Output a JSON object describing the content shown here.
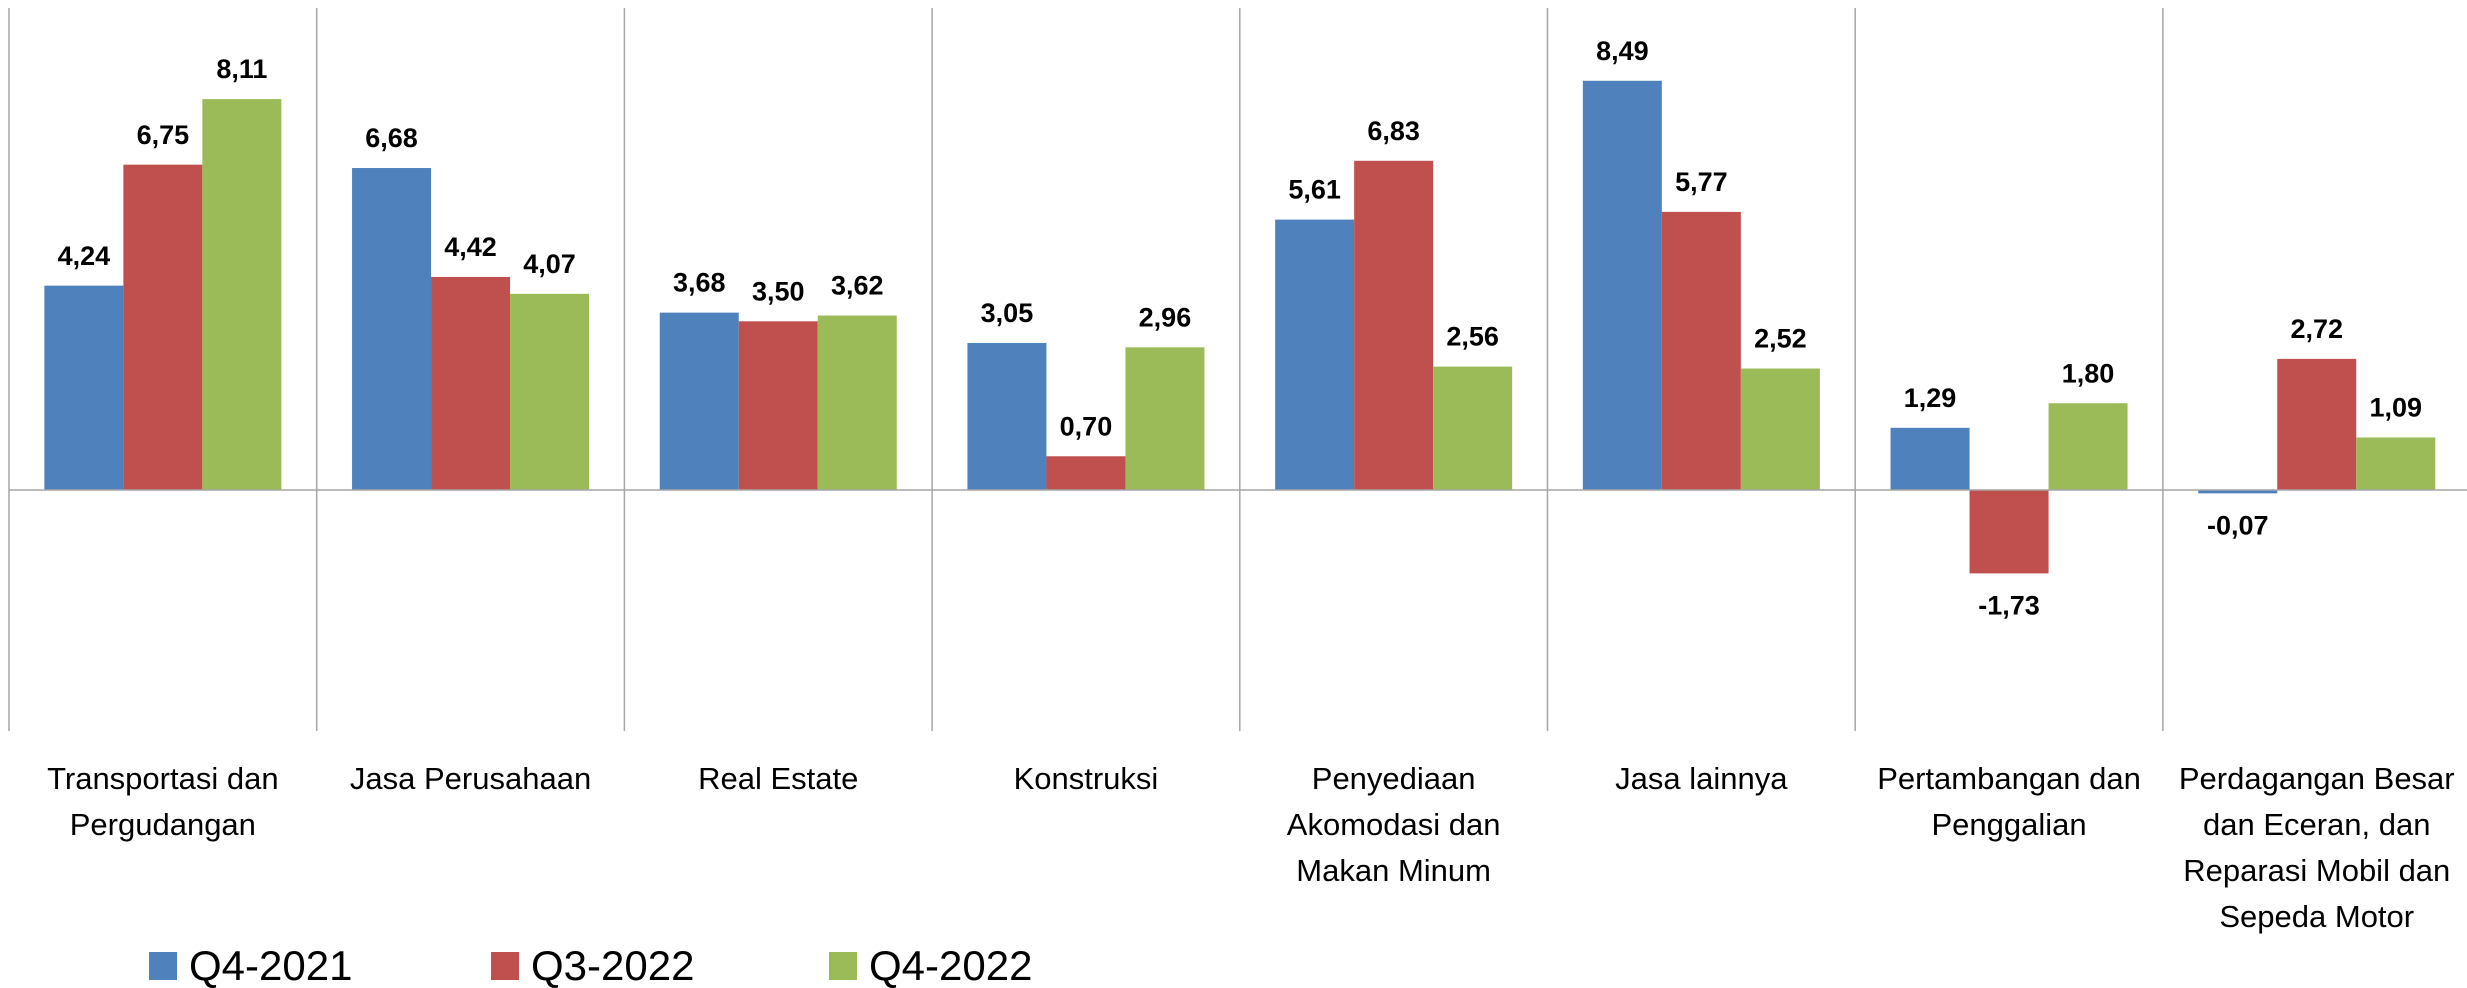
{
  "chart_data": {
    "type": "bar",
    "categories": [
      "Transportasi dan Pergudangan",
      "Jasa Perusahaan",
      "Real Estate",
      "Konstruksi",
      "Penyediaan Akomodasi dan Makan Minum",
      "Jasa lainnya",
      "Pertambangan dan Penggalian",
      "Perdagangan Besar dan Eceran, dan Reparasi Mobil dan Sepeda Motor"
    ],
    "series": [
      {
        "name": "Q4-2021",
        "color": "#4f81bd",
        "values": [
          4.24,
          6.68,
          3.68,
          3.05,
          5.61,
          8.49,
          1.29,
          -0.07
        ],
        "value_labels": [
          "4,24",
          "6,68",
          "3,68",
          "3,05",
          "5,61",
          "8,49",
          "1,29",
          "-0,07"
        ]
      },
      {
        "name": "Q3-2022",
        "color": "#c0504d",
        "values": [
          6.75,
          4.42,
          3.5,
          0.7,
          6.83,
          5.77,
          -1.73,
          2.72
        ],
        "value_labels": [
          "6,75",
          "4,42",
          "3,50",
          "0,70",
          "6,83",
          "5,77",
          "-1,73",
          "2,72"
        ]
      },
      {
        "name": "Q4-2022",
        "color": "#9bbb59",
        "values": [
          8.11,
          4.07,
          3.62,
          2.96,
          2.56,
          2.52,
          1.8,
          1.09
        ],
        "value_labels": [
          "8,11",
          "4,07",
          "3,62",
          "2,96",
          "2,56",
          "2,52",
          "1,80",
          "1,09"
        ]
      }
    ],
    "ylim": [
      -5,
      10
    ],
    "legend": "bottom"
  }
}
